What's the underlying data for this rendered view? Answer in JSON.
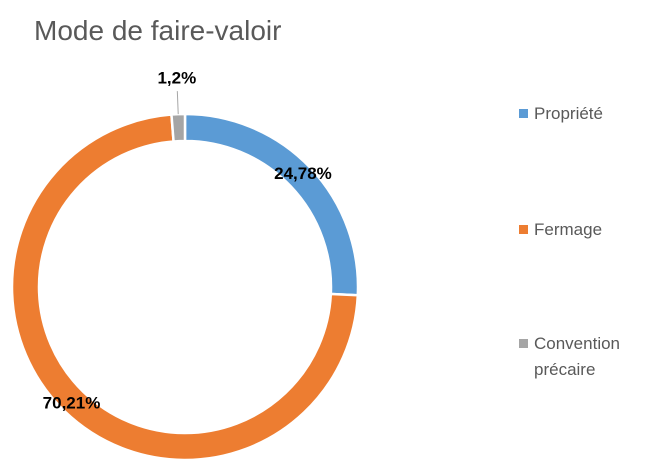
{
  "chart_data": {
    "type": "donut",
    "title": "Mode de faire-valoir",
    "categories": [
      "Propriété",
      "Fermage",
      "Convention précaire"
    ],
    "values": [
      24.78,
      70.21,
      1.2
    ],
    "value_labels": [
      "24,78%",
      "70,21%",
      "1,2%"
    ],
    "colors": [
      "#5b9bd5",
      "#ed7d31",
      "#a5a5a5"
    ],
    "legend": "right"
  }
}
